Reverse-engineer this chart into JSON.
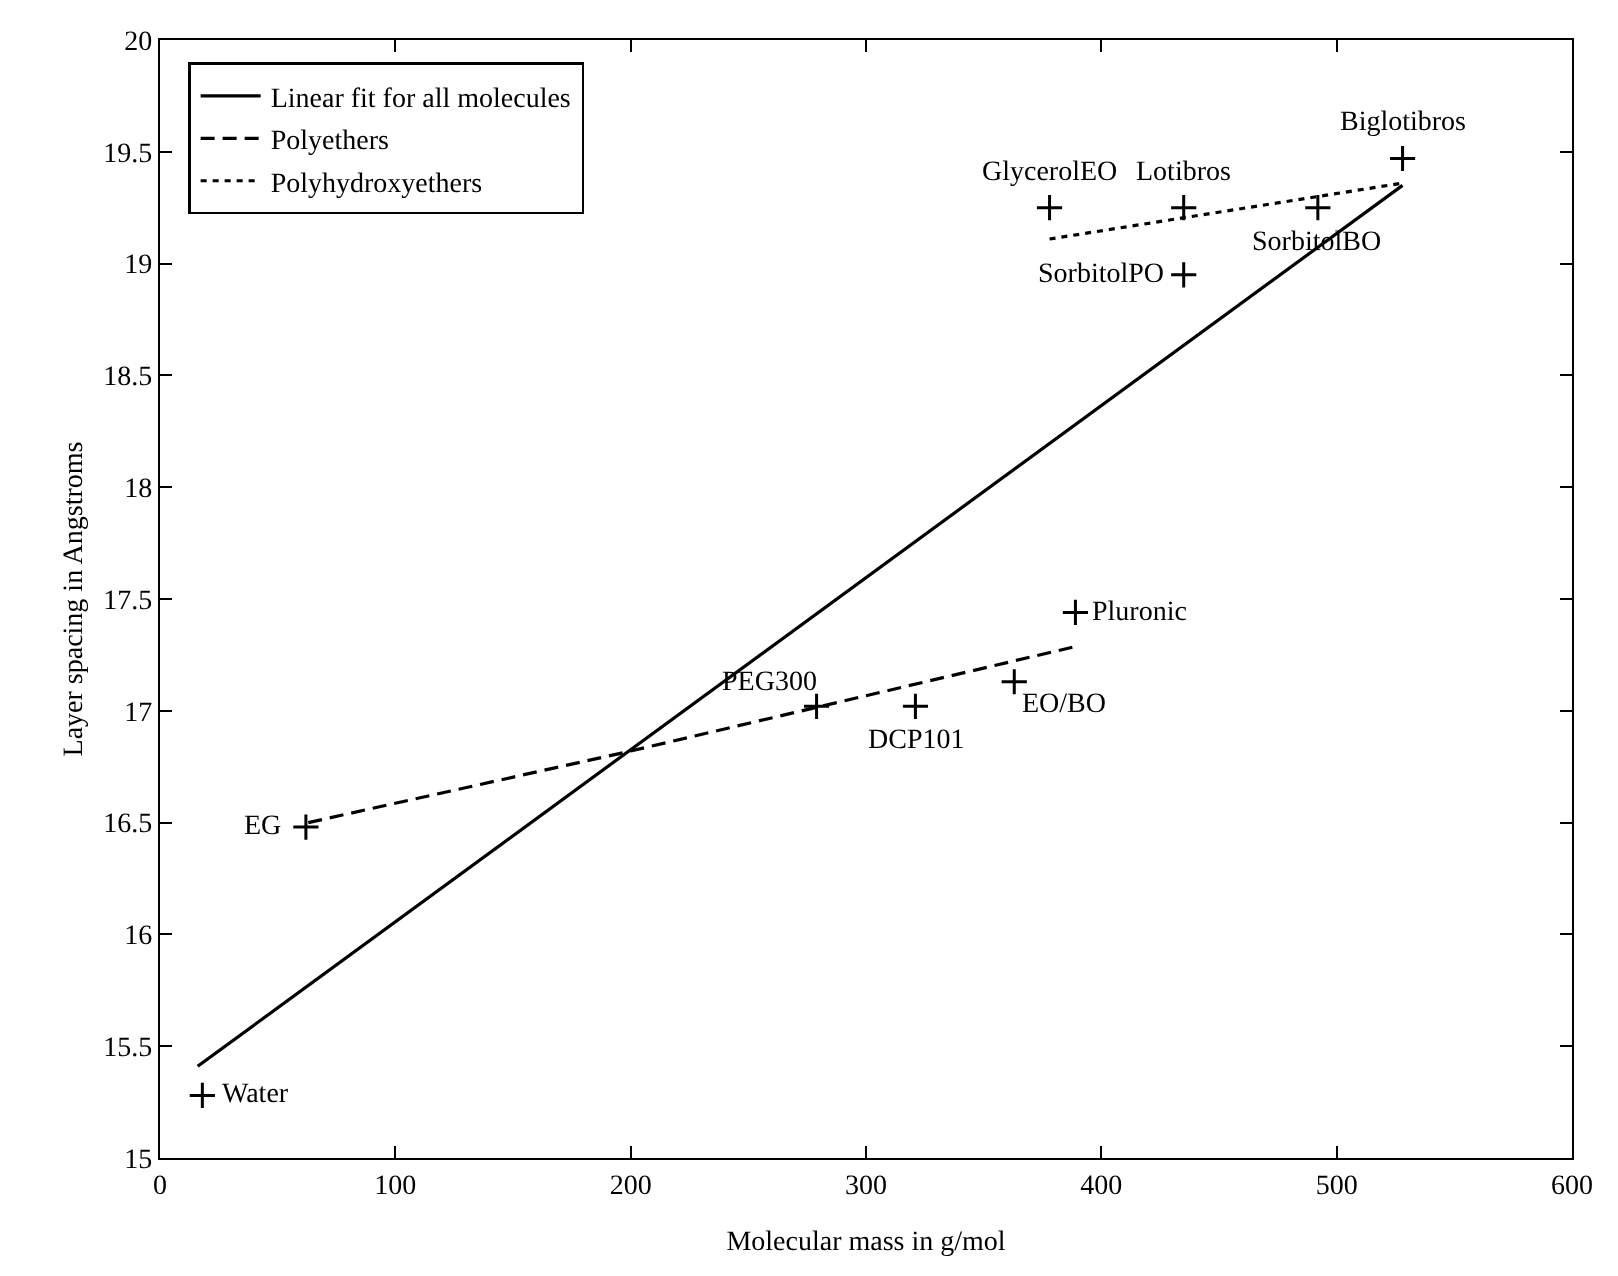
{
  "chart_data": {
    "type": "scatter",
    "xlabel": "Molecular mass in g/mol",
    "ylabel": "Layer spacing in Angstroms",
    "xlim": [
      0,
      600
    ],
    "xticks": [
      0,
      100,
      200,
      300,
      400,
      500,
      600
    ],
    "ylim": [
      15,
      20
    ],
    "yticks": [
      15,
      15.5,
      16,
      16.5,
      17,
      17.5,
      18,
      18.5,
      19,
      19.5,
      20
    ],
    "grid": false,
    "legend": "top left",
    "series": [
      {
        "marker": "cross",
        "color": "#000000",
        "x": [
          18,
          62,
          279,
          321,
          363,
          389,
          378,
          435,
          435,
          492,
          528
        ],
        "values": [
          15.28,
          16.48,
          17.02,
          17.02,
          17.13,
          17.44,
          19.25,
          19.25,
          18.95,
          19.25,
          19.47
        ]
      },
      {
        "type": "line",
        "name": "Linear fit for all molecules",
        "line_style": "solid",
        "marker": "none",
        "color": "#000000",
        "x": [
          16,
          528
        ],
        "values": [
          15.41,
          19.35
        ]
      },
      {
        "type": "line",
        "name": "Polyethers",
        "line_style": "dashed",
        "marker": "none",
        "color": "#000000",
        "x": [
          63,
          200,
          390
        ],
        "values": [
          16.5,
          16.82,
          17.29
        ]
      },
      {
        "type": "line",
        "name": "Polyhydroxyethers",
        "line_style": "dotted",
        "marker": "none",
        "color": "#000000",
        "x": [
          378,
          528
        ],
        "values": [
          19.11,
          19.36
        ]
      }
    ],
    "annotations": [
      {
        "text": "Water",
        "x": 18,
        "y": 15.28
      },
      {
        "text": "EG",
        "x": 62,
        "y": 16.48
      },
      {
        "text": "PEG300",
        "x": 279,
        "y": 17.02
      },
      {
        "text": "DCP101",
        "x": 321,
        "y": 17.02
      },
      {
        "text": "EO/BO",
        "x": 363,
        "y": 17.13
      },
      {
        "text": "Pluronic",
        "x": 389,
        "y": 17.44
      },
      {
        "text": "GlycerolEO",
        "x": 378,
        "y": 19.25
      },
      {
        "text": "Lotibros",
        "x": 435,
        "y": 19.25
      },
      {
        "text": "SorbitolPO",
        "x": 435,
        "y": 18.95
      },
      {
        "text": "SorbitolBO",
        "x": 492,
        "y": 19.25
      },
      {
        "text": "Biglotibros",
        "x": 528,
        "y": 19.47
      }
    ]
  }
}
